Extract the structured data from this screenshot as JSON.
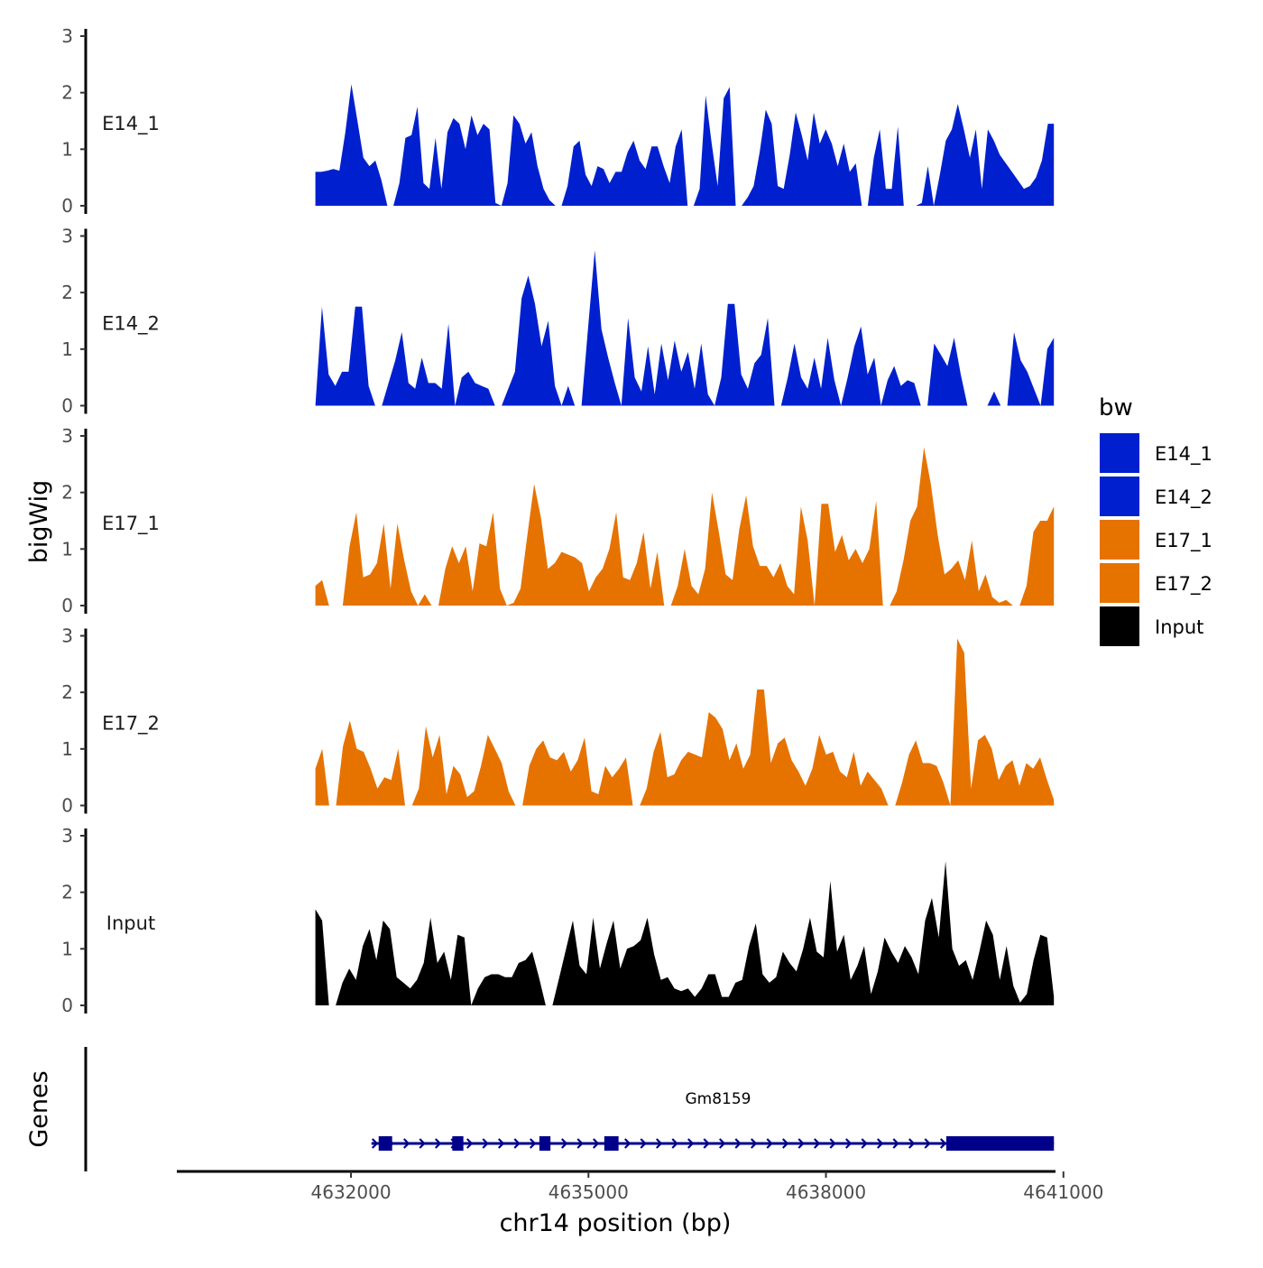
{
  "chart_data": {
    "type": "area",
    "title": "",
    "ylabel": "bigWig",
    "xlabel": "chr14 position (bp)",
    "ylim": [
      0,
      3
    ],
    "yticks": [
      0,
      1,
      2,
      3
    ],
    "xlim": [
      4629800,
      4640900
    ],
    "xticks": [
      {
        "value": 4632000,
        "label": "4632000"
      },
      {
        "value": 4635000,
        "label": "4635000"
      },
      {
        "value": 4638000,
        "label": "4638000"
      },
      {
        "value": 4641000,
        "label": "4641000"
      }
    ],
    "x_start": 4631550,
    "x_end": 4640880,
    "legend": {
      "title": "bw",
      "position": "right",
      "items": [
        {
          "label": "E14_1",
          "color": "#0020CF"
        },
        {
          "label": "E14_2",
          "color": "#0020CF"
        },
        {
          "label": "E17_1",
          "color": "#E67300"
        },
        {
          "label": "E17_2",
          "color": "#E67300"
        },
        {
          "label": "Input",
          "color": "#000000"
        }
      ]
    },
    "series": [
      {
        "name": "E14_1",
        "color": "#0020CF",
        "values": [
          0.6,
          0.6,
          0.62,
          0.65,
          0.62,
          1.3,
          2.15,
          1.5,
          0.85,
          0.7,
          0.8,
          0.45,
          0.0,
          0.0,
          0.4,
          1.2,
          1.25,
          1.75,
          0.4,
          0.3,
          1.2,
          0.3,
          1.3,
          1.55,
          1.45,
          1.0,
          1.6,
          1.25,
          1.45,
          1.35,
          0.05,
          0.0,
          0.4,
          1.6,
          1.45,
          1.1,
          1.3,
          0.7,
          0.3,
          0.1,
          0.0,
          0.0,
          0.35,
          1.05,
          1.15,
          0.55,
          0.35,
          0.7,
          0.65,
          0.4,
          0.6,
          0.6,
          0.95,
          1.15,
          0.8,
          0.65,
          1.05,
          1.05,
          0.7,
          0.4,
          1.05,
          1.35,
          0.0,
          0.0,
          0.3,
          1.95,
          1.1,
          0.35,
          1.9,
          2.1,
          0.0,
          0.0,
          0.15,
          0.35,
          0.95,
          1.7,
          1.45,
          0.35,
          0.3,
          0.9,
          1.65,
          1.25,
          0.8,
          1.65,
          1.1,
          1.35,
          1.1,
          0.7,
          1.1,
          0.6,
          0.75,
          0.0,
          0.0,
          0.85,
          1.35,
          0.3,
          0.3,
          1.4,
          0.0,
          0.0,
          0.0,
          0.05,
          0.7,
          0.0,
          0.55,
          1.15,
          1.35,
          1.8,
          1.35,
          0.85,
          1.35,
          0.3,
          1.35,
          1.15,
          0.9,
          0.75,
          0.6,
          0.45,
          0.3,
          0.35,
          0.5,
          0.8,
          1.45,
          1.45
        ]
      },
      {
        "name": "E14_2",
        "color": "#0020CF",
        "values": [
          0.0,
          1.75,
          0.55,
          0.35,
          0.6,
          0.6,
          1.75,
          1.75,
          0.35,
          0.0,
          0.0,
          0.4,
          0.8,
          1.3,
          0.4,
          0.3,
          0.85,
          0.4,
          0.4,
          0.3,
          1.45,
          0.0,
          0.5,
          0.6,
          0.4,
          0.35,
          0.3,
          0.0,
          0.0,
          0.3,
          0.6,
          1.9,
          2.3,
          1.8,
          1.05,
          1.5,
          0.35,
          0.0,
          0.35,
          0.0,
          0.0,
          1.4,
          2.75,
          1.35,
          0.85,
          0.4,
          0.0,
          1.55,
          0.5,
          0.25,
          1.05,
          0.2,
          1.1,
          0.45,
          1.15,
          0.6,
          0.95,
          0.3,
          1.1,
          0.2,
          0.0,
          0.5,
          1.8,
          1.8,
          0.55,
          0.3,
          0.75,
          0.9,
          1.55,
          0.0,
          0.0,
          0.5,
          1.1,
          0.5,
          0.3,
          0.85,
          0.3,
          1.2,
          0.45,
          0.0,
          0.5,
          1.05,
          1.4,
          0.55,
          0.85,
          0.0,
          0.45,
          0.7,
          0.35,
          0.45,
          0.4,
          0.0,
          0.0,
          1.1,
          0.9,
          0.7,
          1.2,
          0.55,
          0.0,
          0.0,
          0.0,
          0.0,
          0.25,
          0.0,
          0.0,
          1.3,
          0.8,
          0.6,
          0.3,
          0.0,
          1.0,
          1.2
        ]
      },
      {
        "name": "E17_1",
        "color": "#E67300",
        "values": [
          0.35,
          0.45,
          0.0,
          0.0,
          0.0,
          1.05,
          1.65,
          0.5,
          0.55,
          0.75,
          1.45,
          0.3,
          1.45,
          0.8,
          0.25,
          0.0,
          0.2,
          0.0,
          0.0,
          0.65,
          1.05,
          0.75,
          1.05,
          0.25,
          1.1,
          1.05,
          1.65,
          0.3,
          0.0,
          0.05,
          0.3,
          1.25,
          2.15,
          1.55,
          0.65,
          0.75,
          0.95,
          0.9,
          0.85,
          0.75,
          0.25,
          0.5,
          0.65,
          1.0,
          1.65,
          0.5,
          0.45,
          0.75,
          1.3,
          0.3,
          0.95,
          0.0,
          0.0,
          0.35,
          1.0,
          0.35,
          0.2,
          0.65,
          2.0,
          1.3,
          0.55,
          0.45,
          1.35,
          1.95,
          1.05,
          0.7,
          0.7,
          0.5,
          0.75,
          0.35,
          0.2,
          1.75,
          1.15,
          0.0,
          1.8,
          1.8,
          0.95,
          1.25,
          0.8,
          1.0,
          0.75,
          1.0,
          1.85,
          0.0,
          0.0,
          0.25,
          0.8,
          1.5,
          1.75,
          2.8,
          2.15,
          1.25,
          0.55,
          0.65,
          0.8,
          0.45,
          1.15,
          0.25,
          0.55,
          0.15,
          0.05,
          0.1,
          0.0,
          0.0,
          0.35,
          1.3,
          1.5,
          1.5,
          1.75
        ]
      },
      {
        "name": "E17_2",
        "color": "#E67300",
        "values": [
          0.65,
          1.0,
          0.0,
          0.0,
          1.05,
          1.5,
          1.0,
          0.95,
          0.65,
          0.3,
          0.5,
          0.45,
          1.0,
          0.0,
          0.0,
          0.3,
          1.4,
          0.85,
          1.25,
          0.2,
          0.7,
          0.55,
          0.15,
          0.25,
          0.7,
          1.25,
          1.0,
          0.75,
          0.25,
          0.0,
          0.0,
          0.7,
          1.0,
          1.15,
          0.85,
          0.8,
          0.95,
          0.6,
          0.8,
          1.2,
          0.25,
          0.2,
          0.7,
          0.5,
          0.65,
          0.85,
          0.0,
          0.0,
          0.3,
          0.95,
          1.3,
          0.5,
          0.55,
          0.8,
          0.95,
          0.9,
          0.85,
          1.65,
          1.55,
          1.35,
          0.8,
          1.1,
          0.65,
          0.9,
          2.05,
          2.05,
          0.75,
          1.1,
          1.2,
          0.8,
          0.6,
          0.35,
          0.65,
          1.25,
          0.9,
          0.95,
          0.6,
          0.5,
          0.95,
          0.35,
          0.6,
          0.45,
          0.3,
          0.0,
          0.0,
          0.4,
          0.9,
          1.15,
          0.75,
          0.75,
          0.7,
          0.4,
          0.0,
          2.95,
          2.7,
          0.3,
          1.15,
          1.25,
          1.0,
          0.45,
          0.7,
          0.8,
          0.35,
          0.75,
          0.65,
          0.85,
          0.45,
          0.1
        ]
      },
      {
        "name": "Input",
        "color": "#000000",
        "values": [
          1.7,
          1.5,
          0.0,
          0.0,
          0.4,
          0.65,
          0.45,
          1.05,
          1.35,
          0.8,
          1.5,
          1.35,
          0.5,
          0.4,
          0.3,
          0.45,
          0.75,
          1.55,
          0.75,
          0.95,
          0.45,
          1.25,
          1.2,
          0.0,
          0.3,
          0.5,
          0.55,
          0.55,
          0.5,
          0.5,
          0.75,
          0.8,
          0.95,
          0.5,
          0.0,
          0.0,
          0.5,
          1.0,
          1.5,
          0.7,
          0.55,
          1.55,
          0.65,
          1.1,
          1.5,
          0.65,
          1.0,
          1.05,
          1.15,
          1.55,
          0.9,
          0.45,
          0.5,
          0.3,
          0.25,
          0.3,
          0.15,
          0.3,
          0.55,
          0.55,
          0.15,
          0.15,
          0.4,
          0.45,
          1.05,
          1.45,
          0.55,
          0.4,
          0.5,
          0.95,
          0.75,
          0.6,
          1.0,
          1.55,
          0.95,
          0.85,
          2.2,
          0.95,
          1.25,
          0.45,
          0.7,
          1.05,
          0.2,
          0.6,
          1.2,
          0.95,
          0.75,
          1.05,
          0.85,
          0.55,
          1.5,
          1.9,
          1.2,
          2.55,
          1.0,
          0.7,
          0.8,
          0.45,
          0.95,
          1.5,
          1.25,
          0.45,
          1.05,
          0.35,
          0.05,
          0.2,
          0.8,
          1.25,
          1.2,
          0.15
        ]
      }
    ],
    "genes": {
      "axis_title": "Genes",
      "items": [
        {
          "name": "Gm8159",
          "start": 4632350,
          "end": 4640880,
          "strand": "+",
          "exons": [
            [
              4632350,
              4632520
            ],
            [
              4633280,
              4633420
            ],
            [
              4634380,
              4634520
            ],
            [
              4635200,
              4635380
            ],
            [
              4639520,
              4640880
            ]
          ]
        }
      ]
    }
  }
}
